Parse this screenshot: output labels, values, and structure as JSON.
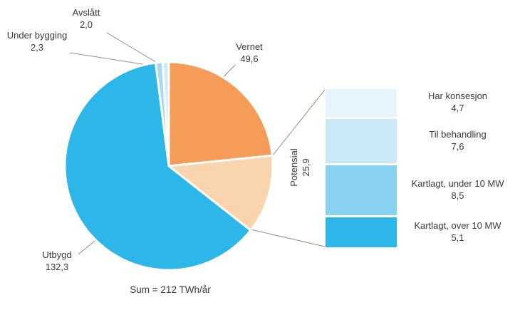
{
  "chart_data": {
    "type": "pie",
    "title": "",
    "sum_label": "Sum = 212 TWh/år",
    "unit": "TWh/år",
    "slices": [
      {
        "label": "Vernet",
        "value": 49.6,
        "value_text": "49,6",
        "color": "#F59C59"
      },
      {
        "label": "Potensial",
        "value": 25.9,
        "value_text": "25,9",
        "color": "#FAD4AC"
      },
      {
        "label": "Utbygd",
        "value": 132.3,
        "value_text": "132,3",
        "color": "#2CB7E8"
      },
      {
        "label": "Under bygging",
        "value": 2.3,
        "value_text": "2,3",
        "color": "#A4DBF2"
      },
      {
        "label": "Avslått",
        "value": 2.0,
        "value_text": "2,0",
        "color": "#CFEBF8"
      }
    ],
    "breakdown": {
      "label": "Potensial",
      "value_text": "25,9",
      "segments": [
        {
          "label": "Har konsesjon",
          "value": 4.7,
          "value_text": "4,7",
          "color": "#E6F4FB"
        },
        {
          "label": "Til behandling",
          "value": 7.6,
          "value_text": "7,6",
          "color": "#CBE8F6"
        },
        {
          "label": "Kartlagt, under 10 MW",
          "value": 8.5,
          "value_text": "8,5",
          "color": "#89D2EF"
        },
        {
          "label": "Kartlagt, over 10 MW",
          "value": 5.1,
          "value_text": "5,1",
          "color": "#2CB7E8"
        }
      ]
    },
    "layout": {
      "grid": false,
      "legend": "external-labels",
      "accent_color": "#2CB7E8"
    }
  }
}
